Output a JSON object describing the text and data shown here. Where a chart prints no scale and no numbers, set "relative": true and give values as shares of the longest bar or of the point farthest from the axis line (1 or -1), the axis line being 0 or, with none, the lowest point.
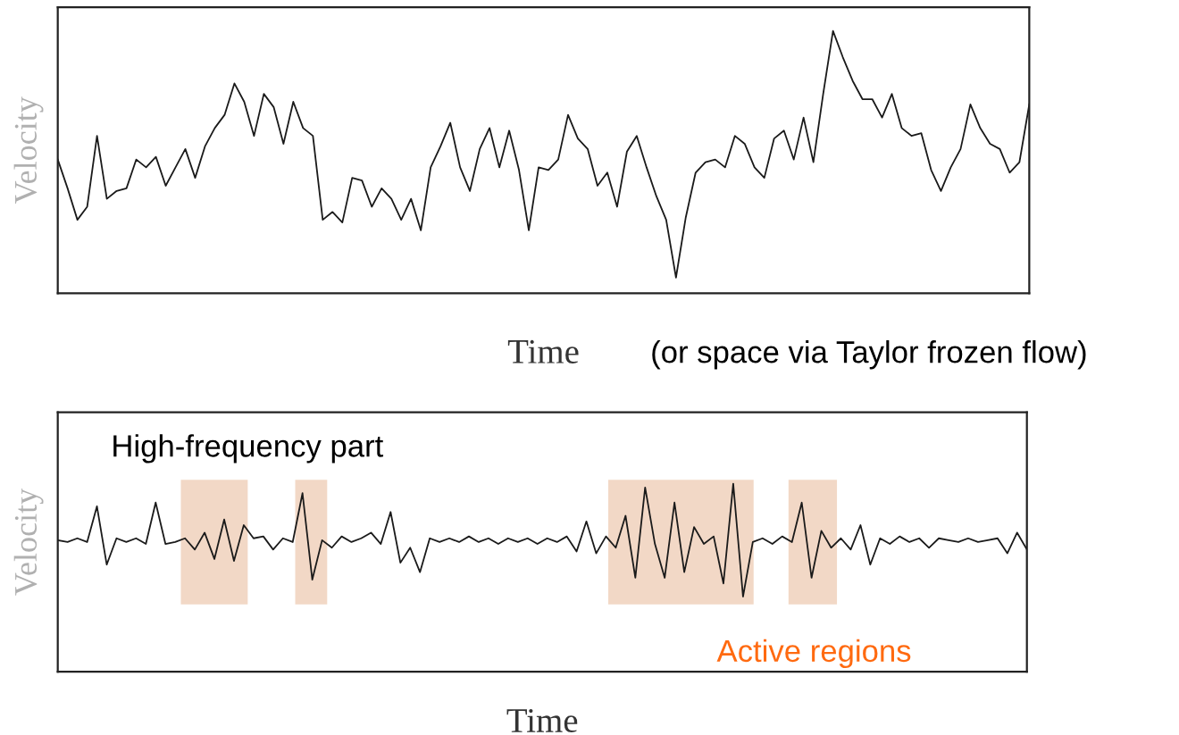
{
  "chart_data": [
    {
      "type": "line",
      "relative": true,
      "ylabel": "Velocity",
      "xlabel": "Time",
      "annotations": [
        "(or space via Taylor frozen flow)"
      ],
      "categories": [
        null,
        null,
        null,
        null,
        null,
        null,
        null,
        null,
        null,
        null,
        null,
        null,
        null,
        null,
        null,
        null,
        null,
        null,
        null,
        null,
        null,
        null,
        null,
        null,
        null,
        null,
        null,
        null,
        null,
        null,
        null,
        null,
        null,
        null,
        null,
        null,
        null,
        null,
        null,
        null,
        null,
        null,
        null,
        null,
        null,
        null,
        null,
        null,
        null,
        null,
        null,
        null,
        null,
        null,
        null,
        null,
        null,
        null,
        null,
        null,
        null,
        null,
        null,
        null,
        null,
        null,
        null,
        null,
        null,
        null,
        null,
        null,
        null,
        null,
        null,
        null,
        null,
        null,
        null,
        null,
        null,
        null,
        null,
        null,
        null,
        null,
        null,
        null,
        null,
        null,
        null,
        null,
        null,
        null,
        null,
        null,
        null,
        null,
        null,
        null
      ],
      "series": [
        {
          "color": "#1a1a1a",
          "values": [
            0.51,
            0.4,
            0.28,
            0.33,
            0.6,
            0.36,
            0.39,
            0.4,
            0.51,
            0.48,
            0.52,
            0.41,
            0.48,
            0.55,
            0.44,
            0.56,
            0.63,
            0.68,
            0.8,
            0.73,
            0.6,
            0.76,
            0.71,
            0.57,
            0.73,
            0.63,
            0.6,
            0.28,
            0.31,
            0.27,
            0.44,
            0.43,
            0.33,
            0.4,
            0.36,
            0.28,
            0.36,
            0.24,
            0.48,
            0.56,
            0.65,
            0.48,
            0.39,
            0.55,
            0.63,
            0.48,
            0.62,
            0.47,
            0.24,
            0.48,
            0.47,
            0.51,
            0.68,
            0.59,
            0.55,
            0.41,
            0.46,
            0.33,
            0.54,
            0.6,
            0.48,
            0.37,
            0.28,
            0.06,
            0.29,
            0.46,
            0.5,
            0.51,
            0.48,
            0.6,
            0.57,
            0.48,
            0.44,
            0.59,
            0.62,
            0.51,
            0.67,
            0.5,
            0.76,
            1,
            0.9,
            0.81,
            0.74,
            0.74,
            0.67,
            0.76,
            0.63,
            0.6,
            0.61,
            0.47,
            0.39,
            0.48,
            0.55,
            0.72,
            0.63,
            0.57,
            0.55,
            0.46,
            0.5,
            0.72
          ]
        }
      ]
    },
    {
      "type": "line",
      "relative": true,
      "ylabel": "Velocity",
      "xlabel": "Time",
      "annotations": [
        "High-frequency part",
        "Active regions"
      ],
      "categories": [
        null,
        null,
        null,
        null,
        null,
        null,
        null,
        null,
        null,
        null,
        null,
        null,
        null,
        null,
        null,
        null,
        null,
        null,
        null,
        null,
        null,
        null,
        null,
        null,
        null,
        null,
        null,
        null,
        null,
        null,
        null,
        null,
        null,
        null,
        null,
        null,
        null,
        null,
        null,
        null,
        null,
        null,
        null,
        null,
        null,
        null,
        null,
        null,
        null,
        null,
        null,
        null,
        null,
        null,
        null,
        null,
        null,
        null,
        null,
        null,
        null,
        null,
        null,
        null,
        null,
        null,
        null,
        null,
        null,
        null,
        null,
        null,
        null,
        null,
        null,
        null,
        null,
        null,
        null,
        null,
        null,
        null,
        null,
        null,
        null,
        null,
        null,
        null,
        null,
        null,
        null,
        null,
        null,
        null,
        null,
        null,
        null,
        null,
        null,
        null
      ],
      "series": [
        {
          "color": "#1a1a1a",
          "values": [
            0.7,
            0.69,
            0.71,
            0.69,
            0.88,
            0.57,
            0.71,
            0.69,
            0.71,
            0.68,
            0.9,
            0.68,
            0.69,
            0.71,
            0.65,
            0.74,
            0.6,
            0.81,
            0.59,
            0.78,
            0.71,
            0.72,
            0.65,
            0.71,
            0.69,
            0.95,
            0.49,
            0.7,
            0.66,
            0.72,
            0.69,
            0.71,
            0.74,
            0.68,
            0.85,
            0.58,
            0.66,
            0.53,
            0.71,
            0.69,
            0.71,
            0.69,
            0.72,
            0.69,
            0.71,
            0.68,
            0.71,
            0.69,
            0.71,
            0.68,
            0.71,
            0.69,
            0.72,
            0.64,
            0.8,
            0.63,
            0.72,
            0.66,
            0.83,
            0.5,
            0.98,
            0.68,
            0.5,
            0.9,
            0.53,
            0.77,
            0.68,
            0.72,
            0.47,
            1,
            0.4,
            0.69,
            0.71,
            0.68,
            0.72,
            0.69,
            0.9,
            0.5,
            0.75,
            0.66,
            0.71,
            0.65,
            0.78,
            0.57,
            0.71,
            0.68,
            0.72,
            0.69,
            0.71,
            0.66,
            0.71,
            0.7,
            0.69,
            0.71,
            0.69,
            0.7,
            0.71,
            0.63,
            0.74,
            0.65
          ]
        }
      ]
    }
  ]
}
